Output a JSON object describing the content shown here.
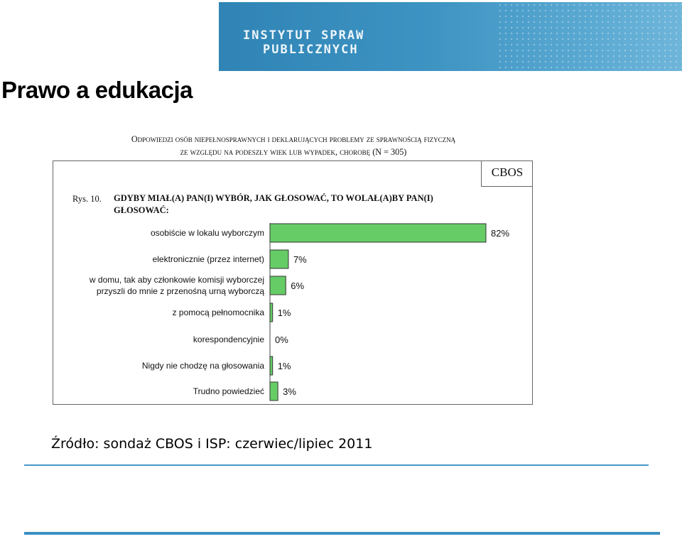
{
  "header": {
    "logo_line1": "INSTYTUT SPRAW",
    "logo_line2": "PUBLICZNYCH"
  },
  "page_title": "Prawo a edukacja",
  "figure": {
    "header_line1": "Odpowiedzi osób niepełnosprawnych i deklarujących problemy ze sprawnością fizyczną",
    "header_line2": "ze względu na podeszły wiek lub wypadek, chorobę (N = 305)",
    "brand": "CBOS",
    "figure_number": "Rys. 10.",
    "question": "GDYBY MIAŁ(A) PAN(I) WYBÓR, JAK GŁOSOWAĆ, TO WOLAŁ(A)BY PAN(I) GŁOSOWAĆ:"
  },
  "chart_data": {
    "type": "bar",
    "orientation": "horizontal",
    "categories": [
      [
        "osobiście w lokalu wyborczym"
      ],
      [
        "elektronicznie (przez internet)"
      ],
      [
        "w domu, tak aby członkowie komisji wyborczej",
        "przyszli do mnie z przenośną urną wyborczą"
      ],
      [
        "z pomocą pełnomocnika"
      ],
      [
        "korespondencyjnie"
      ],
      [
        "Nigdy nie chodzę na głosowania"
      ],
      [
        "Trudno powiedzieć"
      ]
    ],
    "values": [
      82,
      7,
      6,
      1,
      0,
      1,
      3
    ],
    "value_labels": [
      "82%",
      "7%",
      "6%",
      "1%",
      "0%",
      "1%",
      "3%"
    ],
    "xlim": [
      0,
      100
    ],
    "bar_color": "#66cc66",
    "bar_stroke": "#333333"
  },
  "source": "Źródło: sondaż CBOS i ISP: czerwiec/lipiec 2011",
  "colors": {
    "banner": "#3a8fc0",
    "rule": "#4a97c6"
  }
}
